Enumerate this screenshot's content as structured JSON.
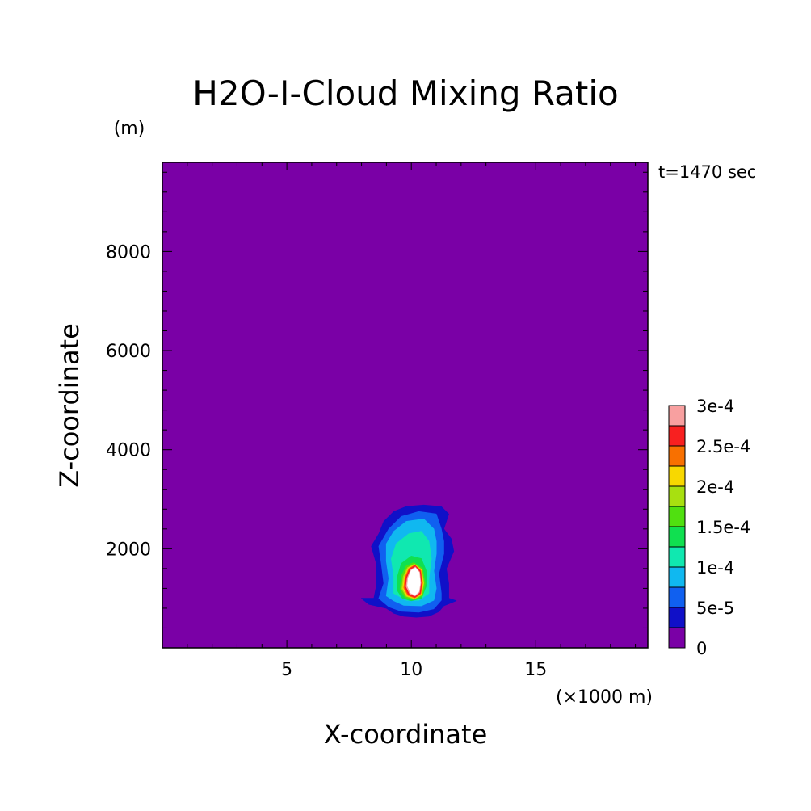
{
  "chart_data": {
    "type": "heatmap",
    "title": "H2O-I-Cloud Mixing Ratio",
    "xlabel": "X-coordinate",
    "ylabel": "Z-coordinate",
    "x_unit": "(×1000 m)",
    "y_unit": "(m)",
    "annotation": "t=1470 sec",
    "xlim": [
      0,
      19.5
    ],
    "ylim": [
      0,
      9800
    ],
    "x_ticks": [
      5,
      10,
      15
    ],
    "y_ticks": [
      2000,
      4000,
      6000,
      8000
    ],
    "background_value": 0,
    "colorbar": {
      "levels": [
        0,
        5e-05,
        0.0001,
        0.00015,
        0.0002,
        0.00025,
        0.0003
      ],
      "labels": [
        "0",
        "5e-5",
        "1e-4",
        "1.5e-4",
        "2e-4",
        "2.5e-4",
        "3e-4"
      ],
      "colors": [
        "#7a00a6",
        "#1010c8",
        "#1060f0",
        "#10b8f0",
        "#10e8b0",
        "#10e050",
        "#50e010",
        "#a8e010",
        "#f8d800",
        "#f87000",
        "#f82020",
        "#f8a0a0"
      ]
    },
    "contours": [
      {
        "level_index": 1,
        "color": "#1010c8",
        "points": [
          [
            8.0,
            1000
          ],
          [
            8.5,
            1000
          ],
          [
            8.6,
            1250
          ],
          [
            8.6,
            1700
          ],
          [
            8.4,
            2050
          ],
          [
            8.7,
            2300
          ],
          [
            8.9,
            2550
          ],
          [
            9.3,
            2750
          ],
          [
            9.8,
            2850
          ],
          [
            10.5,
            2880
          ],
          [
            11.2,
            2850
          ],
          [
            11.5,
            2700
          ],
          [
            11.3,
            2400
          ],
          [
            11.6,
            2200
          ],
          [
            11.7,
            1950
          ],
          [
            11.4,
            1600
          ],
          [
            11.5,
            1300
          ],
          [
            11.5,
            1000
          ],
          [
            11.8,
            950
          ],
          [
            11.3,
            850
          ],
          [
            11.1,
            730
          ],
          [
            10.7,
            640
          ],
          [
            10.2,
            620
          ],
          [
            9.7,
            640
          ],
          [
            9.3,
            700
          ],
          [
            9.0,
            800
          ],
          [
            8.3,
            880
          ]
        ]
      },
      {
        "level_index": 2,
        "color": "#1060f0",
        "points": [
          [
            8.7,
            1000
          ],
          [
            8.9,
            1300
          ],
          [
            8.8,
            1700
          ],
          [
            8.7,
            2050
          ],
          [
            9.1,
            2400
          ],
          [
            9.6,
            2650
          ],
          [
            10.3,
            2750
          ],
          [
            11.0,
            2700
          ],
          [
            11.2,
            2400
          ],
          [
            11.3,
            2150
          ],
          [
            11.3,
            1900
          ],
          [
            11.1,
            1500
          ],
          [
            11.2,
            1100
          ],
          [
            11.2,
            960
          ],
          [
            10.9,
            790
          ],
          [
            10.3,
            720
          ],
          [
            9.6,
            740
          ],
          [
            9.1,
            830
          ]
        ]
      },
      {
        "level_index": 3,
        "color": "#10b8f0",
        "points": [
          [
            9.0,
            1050
          ],
          [
            9.1,
            1400
          ],
          [
            9.0,
            1750
          ],
          [
            9.0,
            2100
          ],
          [
            9.3,
            2350
          ],
          [
            9.8,
            2550
          ],
          [
            10.5,
            2600
          ],
          [
            10.9,
            2400
          ],
          [
            11.0,
            2150
          ],
          [
            11.0,
            1900
          ],
          [
            10.9,
            1550
          ],
          [
            11.0,
            1200
          ],
          [
            10.9,
            960
          ],
          [
            10.4,
            850
          ],
          [
            9.7,
            860
          ],
          [
            9.3,
            950
          ]
        ]
      },
      {
        "level_index": 4,
        "color": "#10e8b0",
        "points": [
          [
            9.3,
            1100
          ],
          [
            9.3,
            1450
          ],
          [
            9.2,
            1800
          ],
          [
            9.4,
            2100
          ],
          [
            9.9,
            2300
          ],
          [
            10.4,
            2350
          ],
          [
            10.7,
            2150
          ],
          [
            10.8,
            1800
          ],
          [
            10.7,
            1400
          ],
          [
            10.7,
            1100
          ],
          [
            10.3,
            960
          ],
          [
            9.8,
            960
          ]
        ]
      },
      {
        "level_index": 5,
        "color": "#10e050",
        "points": [
          [
            9.45,
            1150
          ],
          [
            9.45,
            1450
          ],
          [
            9.6,
            1700
          ],
          [
            10.0,
            1850
          ],
          [
            10.4,
            1800
          ],
          [
            10.6,
            1550
          ],
          [
            10.6,
            1250
          ],
          [
            10.4,
            1000
          ],
          [
            10.0,
            950
          ],
          [
            9.65,
            1000
          ]
        ]
      },
      {
        "level_index": 6,
        "color": "#50e010",
        "points": [
          [
            9.55,
            1180
          ],
          [
            9.6,
            1450
          ],
          [
            9.8,
            1650
          ],
          [
            10.1,
            1720
          ],
          [
            10.45,
            1600
          ],
          [
            10.55,
            1300
          ],
          [
            10.45,
            1050
          ],
          [
            10.1,
            970
          ],
          [
            9.75,
            1020
          ]
        ]
      },
      {
        "level_index": 7,
        "color": "#a8e010",
        "points": [
          [
            9.62,
            1190
          ],
          [
            9.68,
            1440
          ],
          [
            9.85,
            1620
          ],
          [
            10.12,
            1690
          ],
          [
            10.42,
            1580
          ],
          [
            10.5,
            1310
          ],
          [
            10.42,
            1070
          ],
          [
            10.12,
            990
          ],
          [
            9.8,
            1040
          ]
        ]
      },
      {
        "level_index": 8,
        "color": "#f8d800",
        "points": [
          [
            9.66,
            1200
          ],
          [
            9.72,
            1430
          ],
          [
            9.88,
            1610
          ],
          [
            10.13,
            1680
          ],
          [
            10.4,
            1570
          ],
          [
            10.48,
            1310
          ],
          [
            10.4,
            1080
          ],
          [
            10.13,
            1000
          ],
          [
            9.83,
            1050
          ]
        ]
      },
      {
        "level_index": 9,
        "color": "#f87000",
        "points": [
          [
            9.7,
            1210
          ],
          [
            9.75,
            1420
          ],
          [
            9.9,
            1600
          ],
          [
            10.14,
            1670
          ],
          [
            10.38,
            1560
          ],
          [
            10.45,
            1310
          ],
          [
            10.38,
            1090
          ],
          [
            10.14,
            1010
          ],
          [
            9.86,
            1060
          ]
        ]
      },
      {
        "level_index": 10,
        "color": "#f82020",
        "points": [
          [
            9.74,
            1220
          ],
          [
            9.78,
            1410
          ],
          [
            9.93,
            1590
          ],
          [
            10.15,
            1660
          ],
          [
            10.36,
            1550
          ],
          [
            10.42,
            1310
          ],
          [
            10.36,
            1100
          ],
          [
            10.15,
            1020
          ],
          [
            9.89,
            1070
          ]
        ]
      },
      {
        "level_index": 11,
        "color": "#f8a0a0",
        "points": [
          [
            9.8,
            1240
          ],
          [
            9.84,
            1410
          ],
          [
            9.97,
            1570
          ],
          [
            10.16,
            1630
          ],
          [
            10.33,
            1530
          ],
          [
            10.38,
            1310
          ],
          [
            10.32,
            1120
          ],
          [
            10.15,
            1050
          ],
          [
            9.94,
            1090
          ]
        ]
      },
      {
        "level_index": 12,
        "color": "#ffffff",
        "points": [
          [
            9.85,
            1250
          ],
          [
            9.88,
            1410
          ],
          [
            10.0,
            1560
          ],
          [
            10.17,
            1610
          ],
          [
            10.31,
            1520
          ],
          [
            10.35,
            1310
          ],
          [
            10.3,
            1140
          ],
          [
            10.15,
            1070
          ],
          [
            9.97,
            1110
          ]
        ]
      }
    ]
  }
}
